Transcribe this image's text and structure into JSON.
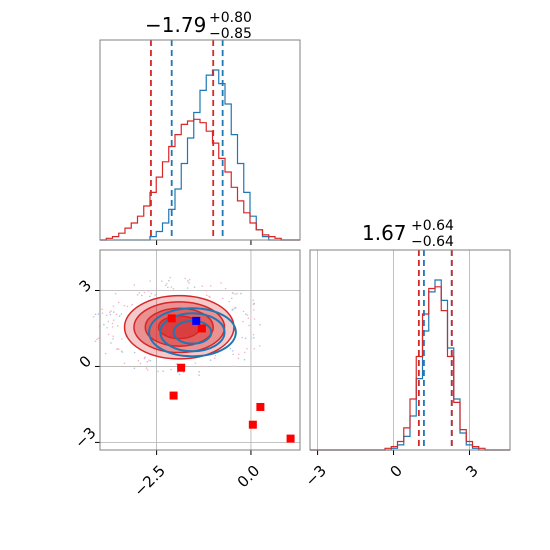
{
  "chart_data": {
    "type": "corner",
    "parameters": [
      {
        "title": {
          "value": "−1.79",
          "plus": "+0.80",
          "minus": "−0.85"
        },
        "median": -1.79,
        "range": [
          -4.0,
          1.3
        ],
        "ticks": [
          -2.5,
          0.0
        ],
        "tick_labels": [
          "−2.5",
          "0.0"
        ],
        "quantile_lines": {
          "blue": [
            -2.1,
            -0.75
          ],
          "red": [
            -2.65,
            -1.0
          ]
        },
        "histograms": {
          "blue": [
            0.0,
            0.0,
            0.0,
            0.0,
            0.0,
            0.0,
            0.0,
            0.0,
            0.02,
            0.05,
            0.1,
            0.18,
            0.3,
            0.45,
            0.6,
            0.75,
            0.88,
            0.97,
            1.0,
            0.92,
            0.8,
            0.62,
            0.45,
            0.28,
            0.14,
            0.06,
            0.02,
            0.0,
            0.0,
            0.0,
            0.0,
            0.0
          ],
          "red": [
            0.0,
            0.01,
            0.02,
            0.04,
            0.07,
            0.1,
            0.14,
            0.2,
            0.28,
            0.37,
            0.46,
            0.55,
            0.62,
            0.68,
            0.7,
            0.71,
            0.69,
            0.64,
            0.57,
            0.48,
            0.4,
            0.31,
            0.23,
            0.16,
            0.1,
            0.06,
            0.03,
            0.02,
            0.01,
            0.0,
            0.0,
            0.0
          ]
        }
      },
      {
        "title": {
          "value": "1.67",
          "plus": "+0.64",
          "minus": "−0.64"
        },
        "median": 1.67,
        "range": [
          -3.3,
          4.6
        ],
        "ticks": [
          -3,
          0,
          3
        ],
        "tick_labels": [
          "−3",
          "0",
          "3"
        ],
        "quantile_lines": {
          "blue": [
            1.2,
            2.3
          ],
          "red": [
            1.0,
            2.3
          ]
        },
        "histograms": {
          "blue": [
            0.0,
            0.0,
            0.0,
            0.0,
            0.0,
            0.0,
            0.0,
            0.0,
            0.0,
            0.0,
            0.0,
            0.0,
            0.0,
            0.01,
            0.03,
            0.08,
            0.2,
            0.42,
            0.7,
            0.93,
            1.0,
            0.88,
            0.6,
            0.3,
            0.1,
            0.03,
            0.01,
            0.0,
            0.0,
            0.0,
            0.0,
            0.0
          ],
          "red": [
            0.0,
            0.0,
            0.0,
            0.0,
            0.0,
            0.0,
            0.0,
            0.0,
            0.0,
            0.0,
            0.0,
            0.0,
            0.01,
            0.02,
            0.05,
            0.13,
            0.3,
            0.55,
            0.8,
            0.95,
            0.96,
            0.82,
            0.55,
            0.28,
            0.12,
            0.05,
            0.02,
            0.01,
            0.0,
            0.0,
            0.0,
            0.0
          ]
        }
      }
    ],
    "joint": {
      "x_param": 0,
      "y_param": 1,
      "contours": {
        "red": {
          "center": [
            -1.9,
            1.55
          ],
          "radii_x": [
            0.55,
            0.9,
            1.2,
            1.45
          ],
          "radii_y": [
            0.45,
            0.75,
            1.0,
            1.25
          ]
        },
        "blue": {
          "center": [
            -1.55,
            1.35
          ],
          "radii_x": [
            0.5,
            0.85,
            1.15
          ],
          "radii_y": [
            0.45,
            0.75,
            0.95
          ]
        }
      },
      "red_squares": [
        [
          -2.1,
          1.9
        ],
        [
          -1.85,
          -0.05
        ],
        [
          -2.05,
          -1.15
        ],
        [
          -1.3,
          1.5
        ],
        [
          0.25,
          -1.6
        ],
        [
          0.05,
          -2.3
        ],
        [
          1.05,
          -2.85
        ]
      ],
      "blue_square": [
        -1.45,
        1.8
      ]
    },
    "colors": {
      "blue": "#1f77b4",
      "red": "#d62728",
      "axis": "#808080",
      "grid": "#b0b0b0",
      "marker_red": "#ff0000",
      "marker_blue": "#0000ff",
      "contour_fill": "#d62728"
    },
    "grid": true,
    "rotated_tick_labels": true
  }
}
